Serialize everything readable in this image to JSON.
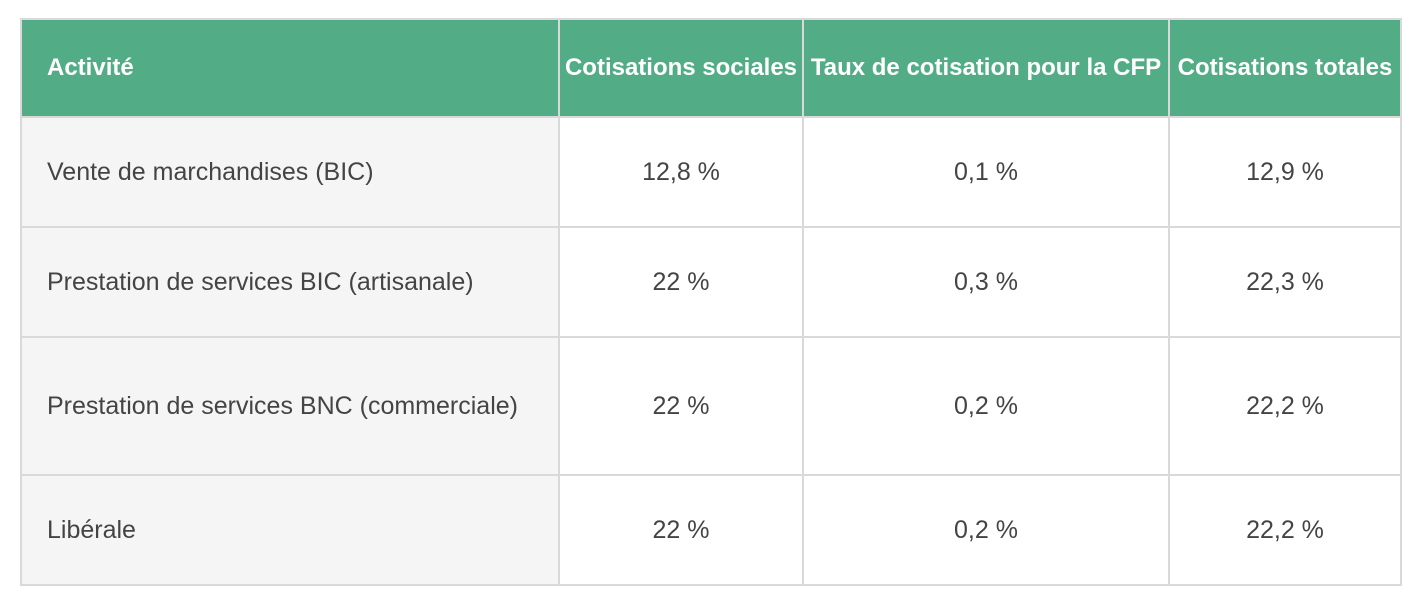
{
  "table": {
    "headers": [
      "Activité",
      "Cotisations sociales",
      "Taux de cotisation pour la CFP",
      "Cotisations totales"
    ],
    "rows": [
      [
        "Vente de marchandises (BIC)",
        "12,8 %",
        "0,1 %",
        "12,9 %"
      ],
      [
        "Prestation de services BIC (artisanale)",
        "22 %",
        "0,3 %",
        "22,3 %"
      ],
      [
        "Prestation de services BNC (commerciale)",
        "22 %",
        "0,2 %",
        "22,2 %"
      ],
      [
        "Libérale",
        "22 %",
        "0,2 %",
        "22,2 %"
      ]
    ]
  },
  "colors": {
    "header_bg": "#52ad86",
    "header_text": "#ffffff",
    "first_col_bg": "#f5f5f5",
    "border": "#d9d9d9",
    "cell_text": "#444444"
  }
}
